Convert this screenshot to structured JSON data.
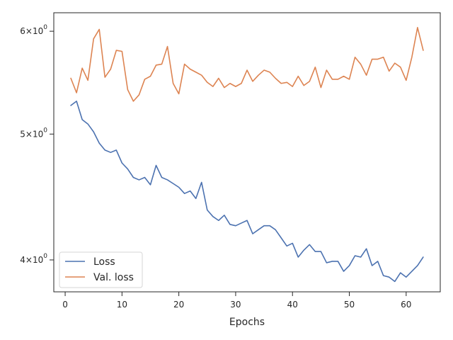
{
  "chart_data": {
    "type": "line",
    "title": "",
    "xlabel": "Epochs",
    "ylabel": "",
    "yscale": "log",
    "xlim": [
      -2,
      66
    ],
    "ylim": [
      3.78,
      6.2
    ],
    "x_ticks": [
      0,
      10,
      20,
      30,
      40,
      50,
      60
    ],
    "y_ticks": [
      {
        "value": 4,
        "base": "4",
        "exp": "0"
      },
      {
        "value": 5,
        "base": "5",
        "exp": "0"
      },
      {
        "value": 6,
        "base": "6",
        "exp": "0"
      }
    ],
    "y_tick_times": "×",
    "y_tick_base": "10",
    "grid": false,
    "legend": "lower-left",
    "x": [
      1,
      2,
      3,
      4,
      5,
      6,
      7,
      8,
      9,
      10,
      11,
      12,
      13,
      14,
      15,
      16,
      17,
      18,
      19,
      20,
      21,
      22,
      23,
      24,
      25,
      26,
      27,
      28,
      29,
      30,
      31,
      32,
      33,
      34,
      35,
      36,
      37,
      38,
      39,
      40,
      41,
      42,
      43,
      44,
      45,
      46,
      47,
      48,
      49,
      50,
      51,
      52,
      53,
      54,
      55,
      56,
      57,
      58,
      59,
      60,
      61,
      62,
      63
    ],
    "series": [
      {
        "name": "Loss",
        "color": "#4c72b0",
        "values": [
          5.26,
          5.3,
          5.13,
          5.09,
          5.02,
          4.92,
          4.86,
          4.84,
          4.86,
          4.75,
          4.7,
          4.63,
          4.61,
          4.63,
          4.57,
          4.73,
          4.63,
          4.61,
          4.58,
          4.55,
          4.5,
          4.52,
          4.46,
          4.59,
          4.37,
          4.32,
          4.29,
          4.33,
          4.26,
          4.25,
          4.27,
          4.29,
          4.19,
          4.22,
          4.25,
          4.25,
          4.22,
          4.16,
          4.1,
          4.12,
          4.02,
          4.07,
          4.11,
          4.06,
          4.06,
          3.98,
          3.99,
          3.99,
          3.92,
          3.96,
          4.03,
          4.02,
          4.08,
          3.96,
          3.99,
          3.89,
          3.88,
          3.85,
          3.91,
          3.88,
          3.92,
          3.96,
          4.02
        ]
      },
      {
        "name": "Val. loss",
        "color": "#dd8452",
        "values": [
          5.52,
          5.38,
          5.62,
          5.5,
          5.92,
          6.02,
          5.53,
          5.61,
          5.8,
          5.79,
          5.41,
          5.3,
          5.36,
          5.51,
          5.54,
          5.65,
          5.66,
          5.84,
          5.47,
          5.37,
          5.66,
          5.61,
          5.58,
          5.55,
          5.48,
          5.44,
          5.52,
          5.43,
          5.47,
          5.44,
          5.47,
          5.6,
          5.49,
          5.55,
          5.6,
          5.58,
          5.52,
          5.47,
          5.48,
          5.44,
          5.54,
          5.45,
          5.49,
          5.63,
          5.43,
          5.6,
          5.51,
          5.51,
          5.54,
          5.51,
          5.73,
          5.66,
          5.55,
          5.71,
          5.71,
          5.73,
          5.59,
          5.67,
          5.63,
          5.5,
          5.73,
          6.04,
          5.8
        ]
      }
    ]
  }
}
